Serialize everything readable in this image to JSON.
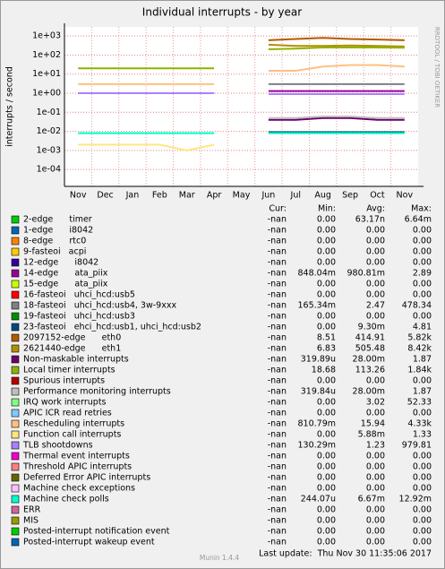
{
  "chart_data": {
    "type": "line",
    "title": "Individual interrupts - by year",
    "y_label": "interrupts / second",
    "side_label": "RRDTOOL / TOBI OETIKER",
    "log_scale": true,
    "grid": true,
    "categories": [
      "Nov",
      "Dec",
      "Jan",
      "Feb",
      "Mar",
      "Apr",
      "May",
      "Jun",
      "Jul",
      "Aug",
      "Sep",
      "Oct",
      "Nov"
    ],
    "ylim": [
      1.3e-05,
      3000
    ],
    "yticks": [
      {
        "value": 1000,
        "label": "1e+03"
      },
      {
        "value": 100,
        "label": "1e+02"
      },
      {
        "value": 10,
        "label": "1e+01"
      },
      {
        "value": 1,
        "label": "1e+00"
      },
      {
        "value": 0.1,
        "label": "1e-01"
      },
      {
        "value": 0.01,
        "label": "1e-02"
      },
      {
        "value": 0.001,
        "label": "1e-03"
      },
      {
        "value": 0.0001,
        "label": "1e-04"
      }
    ],
    "legend_header": {
      "cur": "Cur:",
      "min": "Min:",
      "avg": "Avg:",
      "max": "Max:"
    },
    "series": [
      {
        "name": "2-edge      timer",
        "color": "#00CC00",
        "cur": "-nan",
        "min": "0.00",
        "avg": "63.17n",
        "max": "6.64m",
        "values": [
          null,
          null,
          null,
          null,
          null,
          null,
          null,
          null,
          null,
          null,
          null,
          null,
          null
        ]
      },
      {
        "name": "1-edge      i8042",
        "color": "#0066B3",
        "cur": "-nan",
        "min": "0.00",
        "avg": "0.00",
        "max": "0.00",
        "values": [
          null,
          null,
          null,
          null,
          null,
          null,
          null,
          null,
          null,
          null,
          null,
          null,
          null
        ]
      },
      {
        "name": "8-edge      rtc0",
        "color": "#FF8000",
        "cur": "-nan",
        "min": "0.00",
        "avg": "0.00",
        "max": "0.00",
        "values": [
          null,
          null,
          null,
          null,
          null,
          null,
          null,
          null,
          null,
          null,
          null,
          null,
          null
        ]
      },
      {
        "name": "9-fasteoi   acpi",
        "color": "#FFCC00",
        "cur": "-nan",
        "min": "0.00",
        "avg": "0.00",
        "max": "0.00",
        "values": [
          null,
          null,
          null,
          null,
          null,
          null,
          null,
          null,
          null,
          null,
          null,
          null,
          null
        ]
      },
      {
        "name": "12-edge      i8042",
        "color": "#330099",
        "cur": "-nan",
        "min": "0.00",
        "avg": "0.00",
        "max": "0.00",
        "values": [
          null,
          null,
          null,
          null,
          null,
          null,
          null,
          null,
          null,
          null,
          null,
          null,
          null
        ]
      },
      {
        "name": "14-edge      ata_piix",
        "color": "#990099",
        "cur": "-nan",
        "min": "848.04m",
        "avg": "980.81m",
        "max": "2.89",
        "values": [
          1,
          1,
          1,
          1,
          1,
          1,
          null,
          1.3,
          1.3,
          1.3,
          1.3,
          1.3,
          1.3
        ]
      },
      {
        "name": "15-edge      ata_piix",
        "color": "#CCFF00",
        "cur": "-nan",
        "min": "0.00",
        "avg": "0.00",
        "max": "0.00",
        "values": [
          null,
          null,
          null,
          null,
          null,
          null,
          null,
          null,
          null,
          null,
          null,
          null,
          null
        ]
      },
      {
        "name": "16-fasteoi   uhci_hcd:usb5",
        "color": "#FF0000",
        "cur": "-nan",
        "min": "0.00",
        "avg": "0.00",
        "max": "0.00",
        "values": [
          null,
          null,
          null,
          null,
          null,
          null,
          null,
          null,
          null,
          null,
          null,
          null,
          null
        ]
      },
      {
        "name": "18-fasteoi   uhci_hcd:usb4, 3w-9xxx",
        "color": "#808080",
        "cur": "-nan",
        "min": "165.34m",
        "avg": "2.47",
        "max": "478.34",
        "values": [
          null,
          null,
          null,
          null,
          null,
          null,
          null,
          3,
          3,
          3,
          3,
          3,
          3
        ]
      },
      {
        "name": "19-fasteoi   uhci_hcd:usb3",
        "color": "#008F00",
        "cur": "-nan",
        "min": "0.00",
        "avg": "0.00",
        "max": "0.00",
        "values": [
          null,
          null,
          null,
          null,
          null,
          null,
          null,
          null,
          null,
          null,
          null,
          null,
          null
        ]
      },
      {
        "name": "23-fasteoi   ehci_hcd:usb1, uhci_hcd:usb2",
        "color": "#00487D",
        "cur": "-nan",
        "min": "0.00",
        "avg": "9.30m",
        "max": "4.81",
        "values": [
          null,
          null,
          null,
          null,
          null,
          null,
          null,
          0.009,
          0.009,
          0.009,
          0.009,
          0.009,
          0.009
        ]
      },
      {
        "name": "2097152-edge      eth0",
        "color": "#B35A00",
        "cur": "-nan",
        "min": "8.51",
        "avg": "414.91",
        "max": "5.82k",
        "values": [
          null,
          null,
          null,
          null,
          null,
          null,
          null,
          600,
          700,
          800,
          700,
          650,
          600
        ]
      },
      {
        "name": "2621440-edge      eth1",
        "color": "#B38F00",
        "cur": "-nan",
        "min": "6.83",
        "avg": "505.48",
        "max": "8.42k",
        "values": [
          null,
          null,
          null,
          null,
          null,
          null,
          null,
          350,
          300,
          300,
          320,
          300,
          280
        ]
      },
      {
        "name": "Non-maskable interrupts",
        "color": "#6B006B",
        "cur": "-nan",
        "min": "319.89u",
        "avg": "28.00m",
        "max": "1.87",
        "values": [
          null,
          null,
          null,
          null,
          null,
          null,
          null,
          0.04,
          0.04,
          0.05,
          0.05,
          0.04,
          0.04
        ]
      },
      {
        "name": "Local timer interrupts",
        "color": "#8FB300",
        "cur": "-nan",
        "min": "18.68",
        "avg": "113.26",
        "max": "1.84k",
        "values": [
          20,
          20,
          20,
          20,
          20,
          20,
          null,
          200,
          220,
          250,
          250,
          250,
          240
        ]
      },
      {
        "name": "Spurious interrupts",
        "color": "#B30000",
        "cur": "-nan",
        "min": "0.00",
        "avg": "0.00",
        "max": "0.00",
        "values": [
          null,
          null,
          null,
          null,
          null,
          null,
          null,
          null,
          null,
          null,
          null,
          null,
          null
        ]
      },
      {
        "name": "Performance monitoring interrupts",
        "color": "#BEBEBE",
        "cur": "-nan",
        "min": "319.84u",
        "avg": "28.00m",
        "max": "1.87",
        "values": [
          null,
          null,
          null,
          null,
          null,
          null,
          null,
          0.05,
          0.05,
          0.06,
          0.06,
          0.05,
          0.05
        ]
      },
      {
        "name": "IRQ work interrupts",
        "color": "#80FF80",
        "cur": "-nan",
        "min": "0.00",
        "avg": "3.02",
        "max": "52.33",
        "values": [
          null,
          null,
          null,
          null,
          null,
          null,
          null,
          null,
          null,
          null,
          null,
          null,
          null
        ]
      },
      {
        "name": "APIC ICR read retries",
        "color": "#80C9FF",
        "cur": "-nan",
        "min": "0.00",
        "avg": "0.00",
        "max": "0.00",
        "values": [
          null,
          null,
          null,
          null,
          null,
          null,
          null,
          null,
          null,
          null,
          null,
          null,
          null
        ]
      },
      {
        "name": "Rescheduling interrupts",
        "color": "#FFC080",
        "cur": "-nan",
        "min": "810.79m",
        "avg": "15.94",
        "max": "4.33k",
        "values": [
          3,
          3,
          3,
          3,
          3,
          3,
          null,
          15,
          15,
          25,
          30,
          30,
          25
        ]
      },
      {
        "name": "Function call interrupts",
        "color": "#FFE680",
        "cur": "-nan",
        "min": "0.00",
        "avg": "5.88m",
        "max": "1.33",
        "values": [
          0.002,
          0.002,
          0.002,
          0.002,
          0.001,
          0.002,
          null,
          null,
          null,
          null,
          null,
          null,
          null
        ]
      },
      {
        "name": "TLB shootdowns",
        "color": "#AA80FF",
        "cur": "-nan",
        "min": "130.29m",
        "avg": "1.23",
        "max": "979.81",
        "values": [
          1,
          1,
          1,
          1,
          1,
          1,
          null,
          0.9,
          0.9,
          0.9,
          0.9,
          0.9,
          0.9
        ]
      },
      {
        "name": "Thermal event interrupts",
        "color": "#EE00CC",
        "cur": "-nan",
        "min": "0.00",
        "avg": "0.00",
        "max": "0.00",
        "values": [
          null,
          null,
          null,
          null,
          null,
          null,
          null,
          null,
          null,
          null,
          null,
          null,
          null
        ]
      },
      {
        "name": "Threshold APIC interrupts",
        "color": "#FF8080",
        "cur": "-nan",
        "min": "0.00",
        "avg": "0.00",
        "max": "0.00",
        "values": [
          null,
          null,
          null,
          null,
          null,
          null,
          null,
          null,
          null,
          null,
          null,
          null,
          null
        ]
      },
      {
        "name": "Deferred Error APIC interrupts",
        "color": "#666600",
        "cur": "-nan",
        "min": "0.00",
        "avg": "0.00",
        "max": "0.00",
        "values": [
          null,
          null,
          null,
          null,
          null,
          null,
          null,
          null,
          null,
          null,
          null,
          null,
          null
        ]
      },
      {
        "name": "Machine check exceptions",
        "color": "#FFBFFF",
        "cur": "-nan",
        "min": "0.00",
        "avg": "0.00",
        "max": "0.00",
        "values": [
          null,
          null,
          null,
          null,
          null,
          null,
          null,
          null,
          null,
          null,
          null,
          null,
          null
        ]
      },
      {
        "name": "Machine check polls",
        "color": "#00FFCC",
        "cur": "-nan",
        "min": "244.07u",
        "avg": "6.67m",
        "max": "12.92m",
        "values": [
          0.008,
          0.008,
          0.008,
          0.008,
          0.008,
          0.008,
          null,
          0.008,
          0.008,
          0.008,
          0.008,
          0.008,
          0.008
        ]
      },
      {
        "name": "ERR",
        "color": "#CC6699",
        "cur": "-nan",
        "min": "0.00",
        "avg": "0.00",
        "max": "0.00",
        "values": [
          null,
          null,
          null,
          null,
          null,
          null,
          null,
          null,
          null,
          null,
          null,
          null,
          null
        ]
      },
      {
        "name": "MIS",
        "color": "#999900",
        "cur": "-nan",
        "min": "0.00",
        "avg": "0.00",
        "max": "0.00",
        "values": [
          null,
          null,
          null,
          null,
          null,
          null,
          null,
          null,
          null,
          null,
          null,
          null,
          null
        ]
      },
      {
        "name": "Posted-interrupt notification event",
        "color": "#00CC00",
        "cur": "-nan",
        "min": "0.00",
        "avg": "0.00",
        "max": "0.00",
        "values": [
          null,
          null,
          null,
          null,
          null,
          null,
          null,
          null,
          null,
          null,
          null,
          null,
          null
        ]
      },
      {
        "name": "Posted-interrupt wakeup event",
        "color": "#0066B3",
        "cur": "-nan",
        "min": "0.00",
        "avg": "0.00",
        "max": "0.00",
        "values": [
          null,
          null,
          null,
          null,
          null,
          null,
          null,
          null,
          null,
          null,
          null,
          null,
          null
        ]
      }
    ],
    "last_update": "Last update:  Thu Nov 30 11:35:06 2017",
    "footer": "Munin 1.4.4"
  }
}
